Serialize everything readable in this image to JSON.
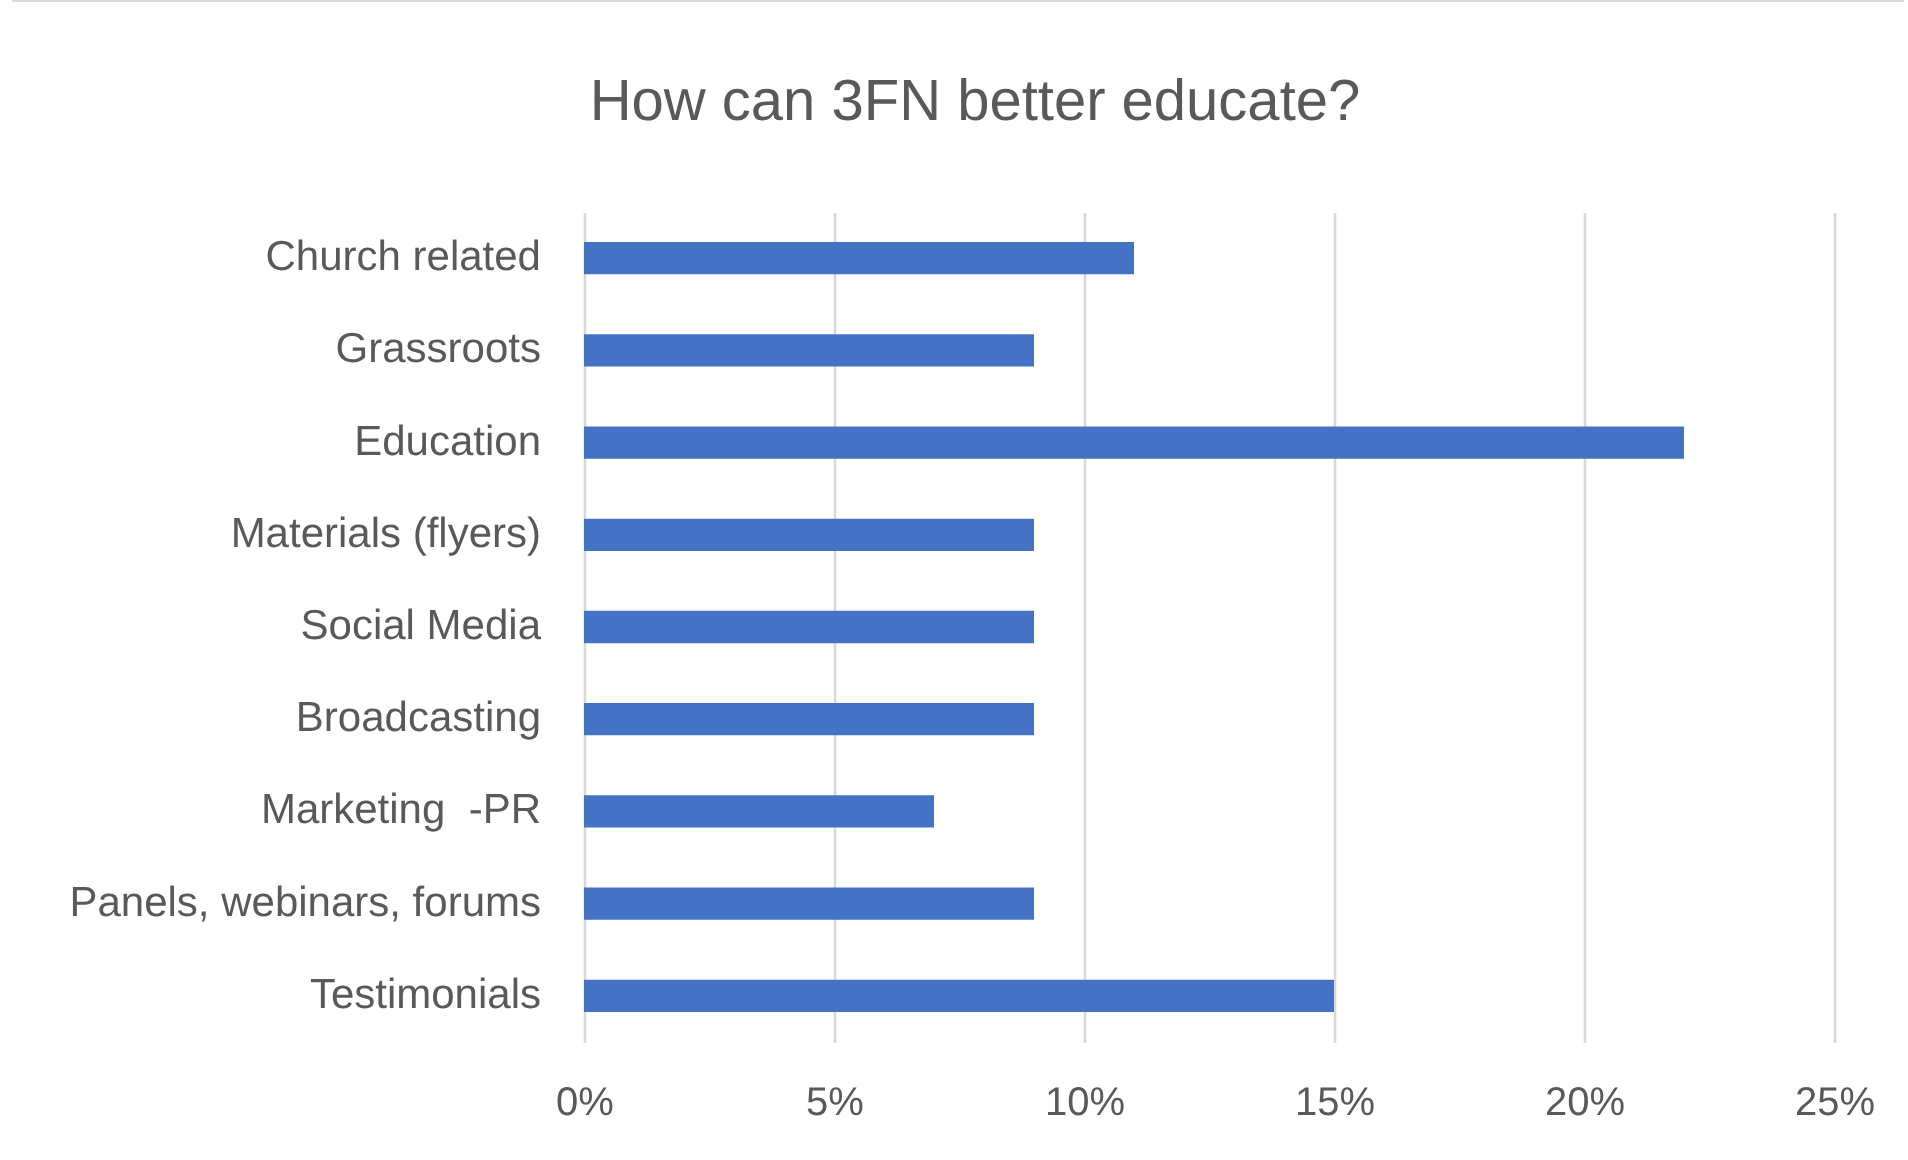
{
  "chart_data": {
    "type": "bar",
    "title": "How can 3FN better educate?",
    "orientation": "horizontal",
    "categories": [
      "Church related",
      "Grassroots",
      "Education",
      "Materials (flyers)",
      "Social Media",
      "Broadcasting",
      "Marketing  -PR",
      "Panels, webinars, forums",
      "Testimonials"
    ],
    "values": [
      11,
      9,
      22,
      9,
      9,
      9,
      7,
      9,
      15
    ],
    "color": "#4472c4",
    "xlim": [
      0,
      25
    ],
    "xticks": [
      {
        "value": 0,
        "label": "0%"
      },
      {
        "value": 5,
        "label": "5%"
      },
      {
        "value": 10,
        "label": "10%"
      },
      {
        "value": 15,
        "label": "15%"
      },
      {
        "value": 20,
        "label": "20%"
      },
      {
        "value": 25,
        "label": "25%"
      }
    ],
    "grid": true
  }
}
